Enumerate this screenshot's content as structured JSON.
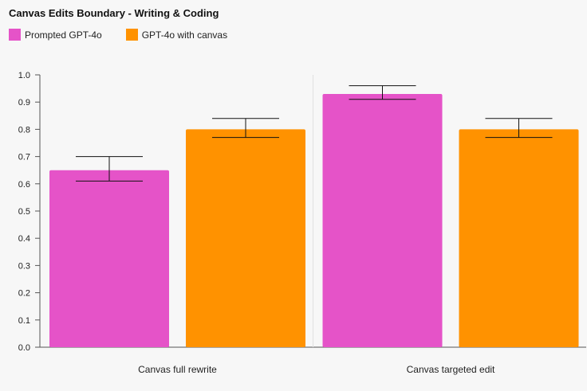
{
  "chart_data": {
    "type": "bar",
    "title": "Canvas Edits Boundary - Writing & Coding",
    "categories": [
      "Canvas full rewrite",
      "Canvas targeted edit"
    ],
    "series": [
      {
        "name": "Prompted GPT-4o",
        "color": "#e553c8",
        "values": [
          0.65,
          0.93
        ],
        "error_low": [
          0.61,
          0.91
        ],
        "error_high": [
          0.7,
          0.96
        ]
      },
      {
        "name": "GPT-4o with canvas",
        "color": "#ff9200",
        "values": [
          0.8,
          0.8
        ],
        "error_low": [
          0.77,
          0.77
        ],
        "error_high": [
          0.84,
          0.84
        ]
      }
    ],
    "ylim": [
      0,
      1.0
    ],
    "yticks": [
      "0.0",
      "0.1",
      "0.2",
      "0.3",
      "0.4",
      "0.5",
      "0.6",
      "0.7",
      "0.8",
      "0.9",
      "1.0"
    ],
    "xlabel": "",
    "ylabel": "",
    "legend_position": "top-left",
    "grid": false
  }
}
